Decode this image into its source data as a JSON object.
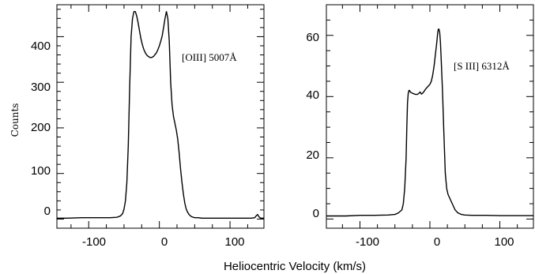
{
  "chart_data": [
    {
      "type": "line",
      "title": "",
      "annotation": "[OIII] 5007Å",
      "xlabel": "Heliocentric Velocity (km/s)",
      "ylabel": "Counts",
      "xlim": [
        -145,
        148
      ],
      "ylim": [
        -20,
        470
      ],
      "x_ticks": [
        -100,
        0,
        100
      ],
      "y_ticks": [
        0,
        100,
        200,
        300,
        400
      ],
      "grid": false,
      "series": [
        {
          "x": [
            -145,
            -130,
            -110,
            -90,
            -70,
            -60,
            -55,
            -52,
            -50,
            -48,
            -46,
            -44,
            -42,
            -40,
            -38,
            -36,
            -34,
            -32,
            -30,
            -28,
            -26,
            -24,
            -22,
            -20,
            -18,
            -16,
            -14,
            -12,
            -10,
            -8,
            -6,
            -4,
            -2,
            0,
            2,
            4,
            6,
            8,
            10,
            12,
            14,
            16,
            18,
            20,
            22,
            24,
            26,
            28,
            30,
            32,
            34,
            36,
            38,
            40,
            42,
            44,
            46,
            48,
            50,
            55,
            60,
            70,
            80,
            90,
            100,
            110,
            120,
            130,
            135,
            137,
            139,
            141,
            143,
            148
          ],
          "y": [
            2,
            2,
            3,
            3,
            3,
            4,
            7,
            12,
            22,
            40,
            80,
            160,
            290,
            400,
            440,
            455,
            455,
            445,
            430,
            412,
            395,
            382,
            372,
            365,
            360,
            357,
            355,
            354,
            355,
            357,
            361,
            365,
            372,
            380,
            390,
            402,
            420,
            440,
            455,
            440,
            390,
            300,
            250,
            225,
            210,
            195,
            175,
            145,
            110,
            80,
            55,
            35,
            22,
            15,
            10,
            7,
            5,
            4,
            3,
            3,
            2,
            2,
            2,
            2,
            2,
            2,
            2,
            2,
            3,
            7,
            10,
            5,
            2,
            2
          ]
        }
      ]
    },
    {
      "type": "line",
      "title": "",
      "annotation": "[S III] 6312Å",
      "xlabel": "Heliocentric Velocity (km/s)",
      "ylabel": "",
      "xlim": [
        -148,
        148
      ],
      "ylim": [
        -3,
        70
      ],
      "x_ticks": [
        -100,
        0,
        100
      ],
      "y_ticks": [
        0,
        20,
        40,
        60
      ],
      "grid": false,
      "series": [
        {
          "x": [
            -148,
            -120,
            -100,
            -80,
            -60,
            -50,
            -45,
            -40,
            -38,
            -36,
            -34,
            -33,
            -32,
            -31,
            -30,
            -29,
            -28,
            -26,
            -24,
            -22,
            -20,
            -18,
            -16,
            -14,
            -12,
            -10,
            -8,
            -6,
            -4,
            -2,
            0,
            2,
            4,
            6,
            8,
            10,
            11,
            12,
            13,
            14,
            15,
            16,
            18,
            20,
            22,
            24,
            26,
            28,
            30,
            32,
            34,
            36,
            38,
            40,
            42,
            45,
            50,
            60,
            80,
            100,
            120,
            148
          ],
          "y": [
            1.0,
            1.0,
            1.2,
            1.2,
            1.3,
            1.5,
            2.0,
            3.0,
            5.0,
            10.0,
            20.0,
            30.0,
            38.0,
            41.0,
            42.0,
            42.0,
            41.5,
            41.2,
            41.0,
            40.8,
            40.7,
            40.7,
            41.0,
            41.5,
            40.8,
            41.2,
            41.8,
            42.5,
            43.0,
            43.5,
            44.0,
            45.0,
            47.0,
            50.0,
            54.0,
            58.0,
            60.5,
            62.0,
            62.0,
            61.0,
            58.0,
            53.0,
            42.0,
            28.0,
            15.0,
            10.0,
            8.0,
            7.0,
            6.0,
            5.0,
            4.0,
            3.0,
            2.5,
            2.0,
            1.8,
            1.5,
            1.3,
            1.2,
            1.2,
            1.1,
            1.1,
            1.1
          ]
        }
      ]
    }
  ],
  "figure": {
    "xlabel": "Heliocentric Velocity (km/s)",
    "panel1": {
      "ylabel": "Counts",
      "annotation": "[OIII] 5007Å",
      "xtick_labels": [
        "-100",
        "0",
        "100"
      ],
      "ytick_labels": [
        "0",
        "100",
        "200",
        "300",
        "400"
      ]
    },
    "panel2": {
      "annotation": "[S III] 6312Å",
      "xtick_labels": [
        "-100",
        "0",
        "100"
      ],
      "ytick_labels": [
        "0",
        "20",
        "40",
        "60"
      ]
    }
  }
}
